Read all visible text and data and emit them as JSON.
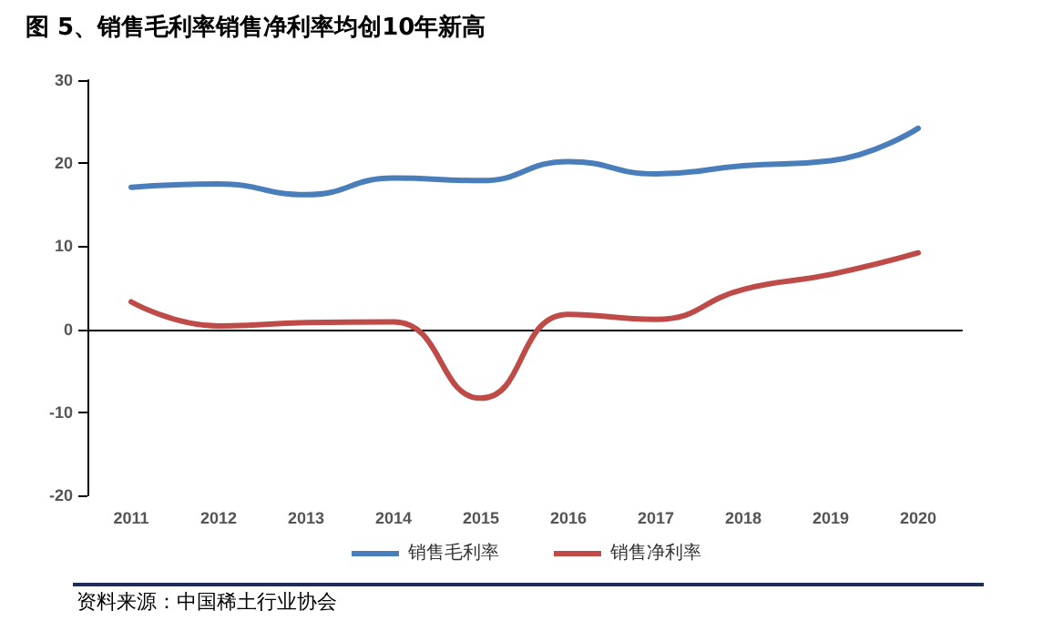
{
  "chart_data": {
    "type": "line",
    "title": "图 5、销售毛利率销售净利率均创10年新高",
    "categories": [
      "2011",
      "2012",
      "2013",
      "2014",
      "2015",
      "2016",
      "2017",
      "2018",
      "2019",
      "2020"
    ],
    "series": [
      {
        "name": "销售毛利率",
        "color": "#4a7ebb",
        "values": [
          17.1,
          17.5,
          16.2,
          18.2,
          17.9,
          20.2,
          18.7,
          19.7,
          20.3,
          24.2
        ]
      },
      {
        "name": "销售净利率",
        "color": "#be4b48",
        "values": [
          3.3,
          0.4,
          0.8,
          0.9,
          -8.3,
          1.8,
          1.2,
          4.8,
          6.6,
          9.2
        ]
      }
    ],
    "ylim": [
      -20,
      30
    ],
    "yticks": [
      -20,
      -10,
      0,
      10,
      20,
      30
    ],
    "legend": "bottom",
    "marker": "none",
    "line_style": "solid",
    "annotations": [
      "资料来源：中国稀土行业协会"
    ]
  }
}
